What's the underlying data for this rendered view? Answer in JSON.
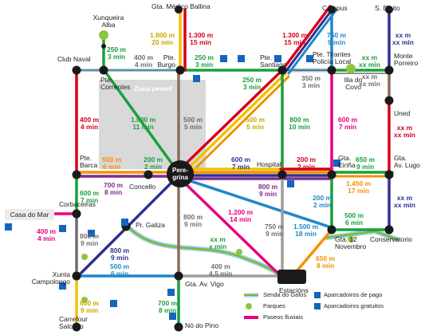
{
  "zone_label": "Zona peonil",
  "hub_label": "Pere-\ngrina",
  "stations": {
    "xunqueira_alba": "Xunqueira\nAlba",
    "gta_medico_ballina": "Gta. Médico Ballina",
    "campus": "Campus",
    "s_bieito": "S. Bieito",
    "club_naval": "Club Naval",
    "pte_correntes": "Pte.\nCorrentes",
    "pte_burgo": "Pte.\nBurgo",
    "pte_santiago": "Pte.\nSantiago",
    "pte_tirantes": "Pte. Tirantes\nPolicía Local",
    "illa_do_covo": "Illa do\nCovo",
    "monte_porreiro": "Monte\nPorreiro",
    "uned": "Uned",
    "pte_barca": "Pte.\nBarca",
    "concello": "Concello",
    "hospital": "Hospital",
    "gta_eirina": "Gta.\nEiriña",
    "gta_av_lugo": "Gta.\nAv. Lugo",
    "casa_do_mar": "Casa do Mar",
    "corbaceiras": "Corbaceiras",
    "pr_galiza": "Pr. Galiza",
    "gta_12_novembro": "Gta. 12\nNovembro",
    "conservatorio": "Conservatorio",
    "xunta_campolongo": "Xunta\nCampolongo",
    "gta_av_vigo": "Gta. Av. Vigo",
    "estacions": "Estacións",
    "carrefour_salcedo": "Carrefour\nSalcedo",
    "no_do_pino": "Nó do Pino"
  },
  "distances": [
    {
      "text": "1.800 m\n20 min",
      "color": "#c9a800"
    },
    {
      "text": "1.300 m\n15 min",
      "color": "#d6001c"
    },
    {
      "text": "1.300 m\n15 min",
      "color": "#d6001c"
    },
    {
      "text": "750 m\n9 min",
      "color": "#1e88c8"
    },
    {
      "text": "xx m\nxx min",
      "color": "#2e3192"
    },
    {
      "text": "250 m\n3 min",
      "color": "#18a03c"
    },
    {
      "text": "400 m\n4 min",
      "color": "#6d6e71"
    },
    {
      "text": "250 m\n3 min",
      "color": "#18a03c"
    },
    {
      "text": "250 m\n3 min",
      "color": "#18a03c"
    },
    {
      "text": "xx m\nxx min",
      "color": "#18a03c"
    },
    {
      "text": "350 m\n3 min",
      "color": "#6d6e71"
    },
    {
      "text": "xx m\nxx min",
      "color": "#6d6e71"
    },
    {
      "text": "400 m\n4 min",
      "color": "#d6001c"
    },
    {
      "text": "1.000 m\n11 min",
      "color": "#18a03c"
    },
    {
      "text": "500 m\n5 min",
      "color": "#6d6e71"
    },
    {
      "text": "500 m\n5 min",
      "color": "#c9a800"
    },
    {
      "text": "800 m\n10 min",
      "color": "#18a03c"
    },
    {
      "text": "600 m\n7 min",
      "color": "#e6007e"
    },
    {
      "text": "xx m\nxx min",
      "color": "#d6001c"
    },
    {
      "text": "500 m\n6 min",
      "color": "#f39200"
    },
    {
      "text": "200 m\n2 min",
      "color": "#18a03c"
    },
    {
      "text": "600 m\n7 min",
      "color": "#2e3192"
    },
    {
      "text": "200 m\n2 min",
      "color": "#d6001c"
    },
    {
      "text": "650 m\n9 min",
      "color": "#18a03c"
    },
    {
      "text": "600 m\n7 min",
      "color": "#18a03c"
    },
    {
      "text": "700 m\n8 min",
      "color": "#7b2d8e"
    },
    {
      "text": "800 m\n9 min",
      "color": "#7b2d8e"
    },
    {
      "text": "1.450 m\n17 min",
      "color": "#f39200"
    },
    {
      "text": "200 m\n2 min",
      "color": "#1e88c8"
    },
    {
      "text": "xx m\nxx min",
      "color": "#2e3192"
    },
    {
      "text": "400 m\n4 min",
      "color": "#e6007e"
    },
    {
      "text": "800 m\n9 min",
      "color": "#6d6e71"
    },
    {
      "text": "1.200 m\n14 min",
      "color": "#e6007e"
    },
    {
      "text": "750 m\n9 min",
      "color": "#6d6e71"
    },
    {
      "text": "1.500 m\n18 min",
      "color": "#1e88c8"
    },
    {
      "text": "500 m\n6 min",
      "color": "#18a03c"
    },
    {
      "text": "800 m\n9 min",
      "color": "#6d6e71"
    },
    {
      "text": "xx m\nx min",
      "color": "#18a03c"
    },
    {
      "text": "800 m\n9 min",
      "color": "#2e3192"
    },
    {
      "text": "500 m\n6 min",
      "color": "#1e88c8"
    },
    {
      "text": "400 m\n4,5 min",
      "color": "#6d6e71"
    },
    {
      "text": "650 m\n8 min",
      "color": "#f39200"
    },
    {
      "text": "800 m\n9 min",
      "color": "#c9a800"
    },
    {
      "text": "700 m\n8 min",
      "color": "#18a03c"
    }
  ],
  "legend": {
    "senda": "Senda do Gafos",
    "parques": "Parques",
    "paseos": "Paseos fluviais",
    "pago": "Aparcadoiros de pago",
    "gratuitos": "Aparcadoiros gratuitos"
  },
  "colors": {
    "red": "#d6001c",
    "green": "#18a03c",
    "blue": "#1e88c8",
    "navy": "#2e3192",
    "yellow": "#f2c200",
    "orange": "#f39200",
    "magenta": "#e6007e",
    "purple": "#7b2d8e",
    "brown": "#8b6e5a",
    "gray": "#9d9d9c",
    "parking": "#1565c0"
  }
}
